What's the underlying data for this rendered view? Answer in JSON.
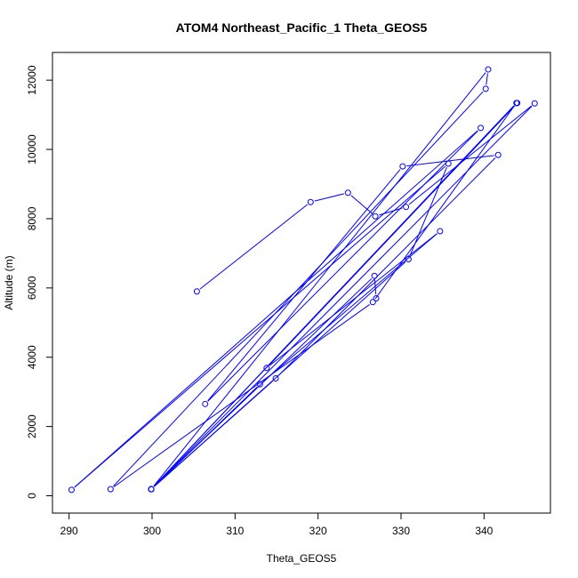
{
  "chart_data": {
    "type": "line",
    "title": "ATOM4 Northeast_Pacific_1 Theta_GEOS5",
    "xlabel": "Theta_GEOS5",
    "ylabel": "Altitude (m)",
    "xlim": [
      288,
      348
    ],
    "ylim": [
      -500,
      12800
    ],
    "xticks": [
      290,
      300,
      310,
      320,
      330,
      340
    ],
    "yticks": [
      0,
      2000,
      4000,
      6000,
      8000,
      10000,
      12000
    ],
    "grid": false,
    "legend": "none",
    "colors": {
      "series": "#0000ff"
    },
    "markers": "open-circle",
    "series": [
      {
        "x": [
          305.4,
          319.1,
          323.6,
          326.9,
          330.6,
          346.1,
          299.9,
          340.5,
          340.2,
          295.0,
          326.6,
          343.9,
          299.9,
          330.9,
          335.7,
          290.3,
          339.6,
          306.4,
          330.2,
          341.7,
          314.9,
          299.9,
          313.0,
          334.7,
          313.8,
          344.0,
          299.9,
          326.8,
          327.0
        ]
      }
    ]
  },
  "data_y": [
    5900,
    8480,
    8750,
    8070,
    8340,
    11330,
    190,
    12310,
    11750,
    190,
    5590,
    11340,
    190,
    6830,
    9590,
    170,
    10620,
    2650,
    9510,
    9840,
    3390,
    190,
    3220,
    7640,
    3690,
    11340,
    190,
    6350,
    5700
  ]
}
